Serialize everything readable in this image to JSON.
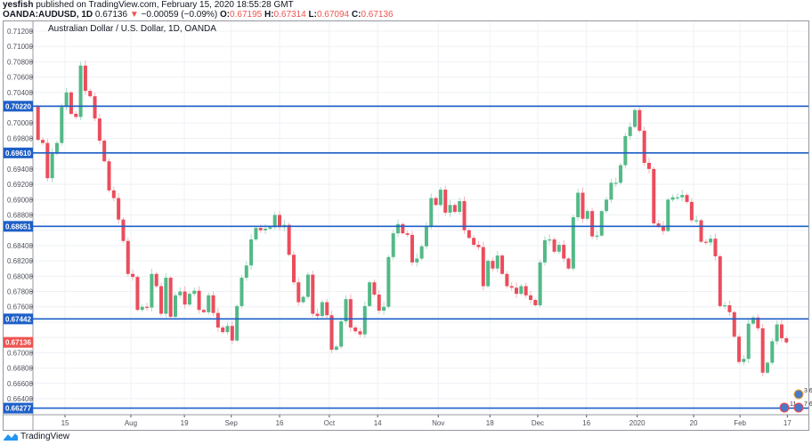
{
  "header": {
    "author": "yesfish",
    "published": "published on TradingView.com, February 15, 2020 18:55:28 GMT",
    "symbol": "OANDA:AUDUSD, 1D",
    "last": "0.67136",
    "change_arrow": "▼",
    "change": "−0.00059 (−0.09%)",
    "o_label": "O:",
    "o": "0.67195",
    "h_label": "H:",
    "h": "0.67314",
    "l_label": "L:",
    "l": "0.67094",
    "c_label": "C:",
    "c": "0.67136"
  },
  "legend": "Australian Dollar / U.S. Dollar, 1D, OANDA",
  "footer": {
    "brand": "TradingView"
  },
  "colors": {
    "up": "#53b987",
    "down": "#eb4d5c",
    "line": "#1e5fc8",
    "current": "#ef5350",
    "grid": "#eef1f5"
  },
  "chart_data": {
    "type": "candlestick",
    "ylim": [
      0.6615,
      0.714
    ],
    "y_ticks": [
      "0.71200",
      "0.71000",
      "0.70800",
      "0.70600",
      "0.70400",
      "0.70200",
      "0.70000",
      "0.69800",
      "0.69600",
      "0.69400",
      "0.69200",
      "0.69000",
      "0.68800",
      "0.68600",
      "0.68400",
      "0.68200",
      "0.68000",
      "0.67800",
      "0.67600",
      "0.67400",
      "0.67200",
      "0.67000",
      "0.66800",
      "0.66600",
      "0.66400"
    ],
    "first_open": 0.7022,
    "closes": [
      0.6978,
      0.6974,
      0.6928,
      0.696,
      0.6974,
      0.7021,
      0.704,
      0.7012,
      0.7008,
      0.7075,
      0.7042,
      0.7035,
      0.7006,
      0.6977,
      0.695,
      0.6912,
      0.6902,
      0.6874,
      0.6846,
      0.6803,
      0.6799,
      0.6756,
      0.676,
      0.6759,
      0.6803,
      0.6787,
      0.6751,
      0.6798,
      0.6747,
      0.6775,
      0.678,
      0.6763,
      0.6777,
      0.6781,
      0.6756,
      0.6753,
      0.6775,
      0.6752,
      0.6733,
      0.6727,
      0.6735,
      0.6716,
      0.6761,
      0.6798,
      0.6814,
      0.6848,
      0.6863,
      0.686,
      0.6862,
      0.6864,
      0.688,
      0.6864,
      0.6867,
      0.6828,
      0.6792,
      0.6766,
      0.6773,
      0.6802,
      0.6751,
      0.6748,
      0.6766,
      0.6749,
      0.6704,
      0.6708,
      0.6741,
      0.677,
      0.6733,
      0.6728,
      0.6724,
      0.6761,
      0.6792,
      0.6776,
      0.6755,
      0.676,
      0.6825,
      0.6856,
      0.6868,
      0.6856,
      0.6854,
      0.6818,
      0.6823,
      0.6839,
      0.6866,
      0.6902,
      0.6893,
      0.6913,
      0.6883,
      0.6893,
      0.6884,
      0.6898,
      0.686,
      0.685,
      0.6841,
      0.6838,
      0.6787,
      0.682,
      0.681,
      0.6827,
      0.6803,
      0.6787,
      0.6785,
      0.6777,
      0.6787,
      0.6775,
      0.6769,
      0.6762,
      0.6818,
      0.6847,
      0.6848,
      0.6832,
      0.6841,
      0.6823,
      0.681,
      0.6877,
      0.6909,
      0.6875,
      0.6885,
      0.6852,
      0.6853,
      0.6885,
      0.69,
      0.6922,
      0.6922,
      0.6945,
      0.6983,
      0.6995,
      0.7017,
      0.699,
      0.6948,
      0.694,
      0.6869,
      0.6866,
      0.6859,
      0.69,
      0.6903,
      0.6903,
      0.6906,
      0.6897,
      0.6873,
      0.6873,
      0.6845,
      0.6844,
      0.6849,
      0.6826,
      0.6761,
      0.6762,
      0.6753,
      0.6721,
      0.6688,
      0.6692,
      0.6738,
      0.6746,
      0.6732,
      0.6674,
      0.6687,
      0.6715,
      0.6737,
      0.6719,
      0.67136
    ],
    "x_labels": [
      {
        "label": "15",
        "bar": 6.7
      },
      {
        "label": "Aug",
        "bar": 20.6
      },
      {
        "label": "19",
        "bar": 31.9
      },
      {
        "label": "Sep",
        "bar": 41.8
      },
      {
        "label": "16",
        "bar": 52
      },
      {
        "label": "Oct",
        "bar": 62.5
      },
      {
        "label": "14",
        "bar": 72.7
      },
      {
        "label": "Nov",
        "bar": 85.5
      },
      {
        "label": "18",
        "bar": 96.4
      },
      {
        "label": "Dec",
        "bar": 106.5
      },
      {
        "label": "16",
        "bar": 116.8
      },
      {
        "label": "2020",
        "bar": 127.5
      },
      {
        "label": "20",
        "bar": 139.4
      },
      {
        "label": "Feb",
        "bar": 149.2
      },
      {
        "label": "17",
        "bar": 159.2
      }
    ],
    "horizontal_levels": [
      "0.70220",
      "0.69610",
      "0.68651",
      "0.67442",
      "0.66277"
    ],
    "current_price": "0.67136",
    "event_badges": [
      "11",
      "3 6",
      "7 6"
    ]
  }
}
